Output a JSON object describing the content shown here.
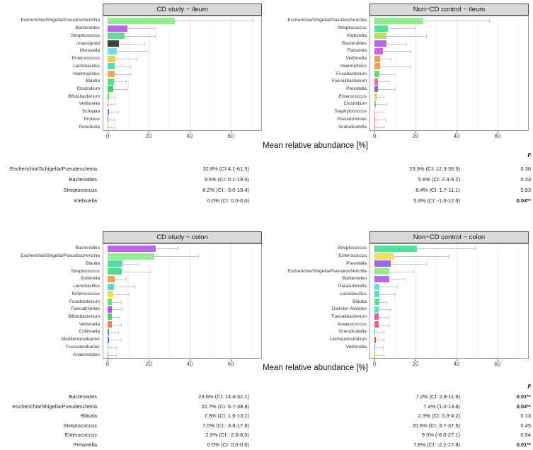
{
  "x_axis_label": "Mean relative abundance [%]",
  "chart_data": [
    {
      "type": "bar",
      "orientation": "horizontal",
      "title": "CD study − ileum",
      "xlabel": "Mean relative abundance [%]",
      "xlim": [
        0,
        75
      ],
      "x_ticks": [
        0,
        20,
        40,
        60
      ],
      "grid": true,
      "categories": [
        "Escherichia/Shigella/Pseudescherichia",
        "Bacteroides",
        "Streptococcus",
        "unassigned",
        "Moraxella",
        "Enterococcus",
        "Lactobacillus",
        "Haemophilus",
        "Blautia",
        "Clostridium",
        "Bifidobacterium",
        "Veillonella",
        "Schaalia",
        "Proteus",
        "Roseburia"
      ],
      "values": [
        32.8,
        9.6,
        8.2,
        5.6,
        4.6,
        3.9,
        3.5,
        3.5,
        3.0,
        2.8,
        0.6,
        0.4,
        0.6,
        0.4,
        0.4
      ],
      "error_high": [
        71,
        23,
        23,
        18,
        20,
        14,
        11,
        11.2,
        9,
        9.3,
        3.5,
        3.5,
        5,
        3,
        3.5
      ],
      "colors": [
        "#90EE90",
        "#BB66E8",
        "#5FDD8F",
        "#3F3F3F",
        "#6FE3E3",
        "#E6D352",
        "#55DBC0",
        "#EDA94F",
        "#5BDB8C",
        "#48CF70",
        "#58D858",
        "#ED7A50",
        "#8A6BE8",
        "#E85555",
        "#6BD66B"
      ]
    },
    {
      "type": "bar",
      "orientation": "horizontal",
      "title": "Non−CD control − ileum",
      "xlabel": "Mean relative abundance [%]",
      "xlim": [
        0,
        75
      ],
      "x_ticks": [
        0,
        20,
        40,
        60
      ],
      "grid": true,
      "categories": [
        "Escherichia/Shigella/Pseudescherichia",
        "Streptococcus",
        "Klebsiella",
        "Bacteroides",
        "Ralstonia",
        "Veillonella",
        "Haemophilus",
        "Fusobacterium",
        "Faecalibacterium",
        "Prevotella",
        "Enterococcus",
        "Clostridium",
        "Staphylococcus",
        "Pseudomonas",
        "Granulicatella"
      ],
      "values": [
        23.9,
        6.4,
        5.8,
        5.8,
        4.0,
        2.7,
        2.7,
        2.5,
        1.8,
        1.8,
        1.5,
        0.6,
        0.4,
        0.3,
        0.5
      ],
      "error_high": [
        56,
        20,
        25,
        15.5,
        17.5,
        8,
        17.5,
        10,
        7,
        10,
        4.5,
        6,
        4.5,
        5.5,
        4.5
      ],
      "colors": [
        "#90EE90",
        "#55E095",
        "#B8E05A",
        "#BB66E8",
        "#DD5FDD",
        "#EDA050",
        "#EDA050",
        "#66DD66",
        "#ED6BA8",
        "#7B6BED",
        "#E0DD5A",
        "#58D88A",
        "#ED9BC4",
        "#E85555",
        "#E85555"
      ]
    },
    {
      "type": "bar",
      "orientation": "horizontal",
      "title": "CD study − colon",
      "xlabel": "Mean relative abundance [%]",
      "xlim": [
        0,
        75
      ],
      "x_ticks": [
        0,
        20,
        40,
        60
      ],
      "grid": true,
      "categories": [
        "Bacteroides",
        "Escherichia/Shigella/Pseudescherichia",
        "Blautia",
        "Streptococcus",
        "Sutterella",
        "Lactobacillus",
        "Enterococcus",
        "Fusobacterium",
        "Faecalimonas",
        "Bifidobacterium",
        "Veillonella",
        "Collinsella",
        "Mediterraneibacter",
        "Fusicatenibacter",
        "Anaerostipes"
      ],
      "values": [
        23.6,
        22.7,
        7.3,
        7.0,
        3.5,
        3.0,
        2.9,
        1.9,
        1.9,
        1.9,
        1.9,
        0.6,
        0.7,
        0.3,
        0.4
      ],
      "error_high": [
        34,
        44,
        15,
        21,
        9,
        13,
        10.5,
        6.5,
        7,
        6,
        6.5,
        5,
        6.5,
        4,
        4
      ],
      "colors": [
        "#BB66E8",
        "#90EE90",
        "#55DBA0",
        "#55DB85",
        "#EDA050",
        "#55DBC8",
        "#EDE05A",
        "#70DD70",
        "#B055E0",
        "#55D070",
        "#ED8850",
        "#5577E8",
        "#5566DD",
        "#70DD70",
        "#DD66BB"
      ]
    },
    {
      "type": "bar",
      "orientation": "horizontal",
      "title": "Non−CD control − colon",
      "xlabel": "Mean relative abundance [%]",
      "xlim": [
        0,
        75
      ],
      "x_ticks": [
        0,
        20,
        40,
        60
      ],
      "grid": true,
      "categories": [
        "Streptococcus",
        "Enterococcus",
        "Prevotella",
        "Escherichia/Shigella/Pseudescherichia",
        "Bacteroides",
        "Parasutterella",
        "Lactobacillus",
        "Blautia",
        "Dialister Alistipes",
        "Faecalibacterium",
        "Anaerococcus",
        "Granulicatella",
        "Lachnoclostridium",
        "Veillonella",
        ""
      ],
      "values": [
        20.6,
        9.3,
        7.8,
        7.4,
        7.2,
        2.5,
        2.3,
        2.3,
        2.2,
        2.0,
        2.0,
        0.5,
        0.7,
        0.4,
        0.5
      ],
      "error_high": [
        49,
        36,
        25,
        19,
        15,
        11,
        10,
        6,
        7.5,
        7,
        7,
        4.5,
        4.5,
        4,
        4.5
      ],
      "colors": [
        "#55E095",
        "#EDE05A",
        "#9B66ED",
        "#90EE90",
        "#BB66E8",
        "#5FE0DD",
        "#55DBC0",
        "#66DD88",
        "#5FE0C8",
        "#ED5F9B",
        "#ED5F7B",
        "#58D88A",
        "#E85555",
        "#6B8BED",
        "#EDA050"
      ]
    }
  ],
  "tables": [
    {
      "p_header": "p",
      "rows": [
        {
          "label": "Escherichia/Schigella/Pseudescheria",
          "cd": "32.8% (CI:4.1-61.5)",
          "control": "23.9% (CI: 12.3-35.5)",
          "p": "0.36",
          "significant": false
        },
        {
          "label": "Bacteroides",
          "cd": "9.6% (CI: 0.1-19.0)",
          "control": "5.8% (CI: 2.4-9.2)",
          "p": "0.33",
          "significant": false
        },
        {
          "label": "Streptococcus",
          "cd": "8.2% (CI: -3.0-19.4)",
          "control": "6.4% (CI: 1.7-11.1)",
          "p": "0.93",
          "significant": false
        },
        {
          "label": "Klebsiella",
          "cd": "0.0% (CI: 0.0-0.0)",
          "control": "5.8% (CI: -1.0-12.6)",
          "p": "0.04**",
          "significant": true
        }
      ]
    },
    {
      "p_header": "p",
      "rows": [
        {
          "label": "Bacteroides",
          "cd": "23.6% (CI: 14.4-32.1)",
          "control": "7.2% (CI: 2.8-11.6)",
          "p": "0.01**",
          "significant": true
        },
        {
          "label": "Escherichia/Shigella/Pseudescheria",
          "cd": "22.7% (CI: 6.7-38.8)",
          "control": "7.4% (1.0-13.8)",
          "p": "0.04**",
          "significant": true
        },
        {
          "label": "Blautia",
          "cd": "7.3% (CI: 1.6-13.1)",
          "control": "2.3% (CI: 0.3-4.2)",
          "p": "0.13",
          "significant": false
        },
        {
          "label": "Streptococcus",
          "cd": "7.0% (CI: -3.8-17.9)",
          "control": "20.6% (CI: 3.7-37.5)",
          "p": "0.45",
          "significant": false
        },
        {
          "label": "Enterococcus",
          "cd": "2.9% (CI: -2.6-8.5)",
          "control": "9.3% (-8.6-27.1)",
          "p": "0.54",
          "significant": false
        },
        {
          "label": "Prevotella",
          "cd": "0.0% (CI: 0.0-0.0)",
          "control": "7.8% (CI: -2.2-17.8)",
          "p": "0.01**",
          "significant": true
        }
      ]
    }
  ]
}
